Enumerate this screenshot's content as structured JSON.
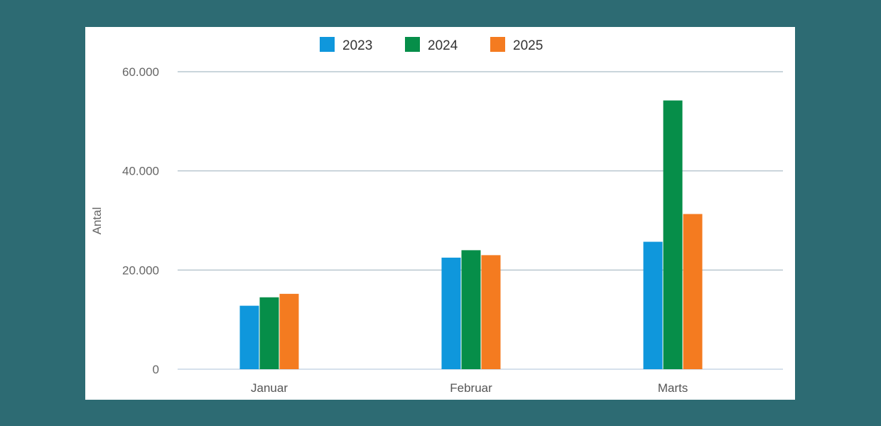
{
  "chart_data": {
    "type": "bar",
    "categories": [
      "Januar",
      "Februar",
      "Marts"
    ],
    "series": [
      {
        "name": "2023",
        "color": "#0f97dc",
        "values": [
          12800,
          22500,
          25700
        ]
      },
      {
        "name": "2024",
        "color": "#068e49",
        "values": [
          14500,
          24000,
          54200
        ]
      },
      {
        "name": "2025",
        "color": "#f47b20",
        "values": [
          15200,
          23000,
          31300
        ]
      }
    ],
    "ylabel": "Antal",
    "ylim": [
      0,
      60000
    ],
    "yticks": [
      0,
      20000,
      40000,
      60000
    ],
    "ytick_labels": [
      "0",
      "20.000",
      "40.000",
      "60.000"
    ],
    "grid": true,
    "legend_position": "top"
  }
}
